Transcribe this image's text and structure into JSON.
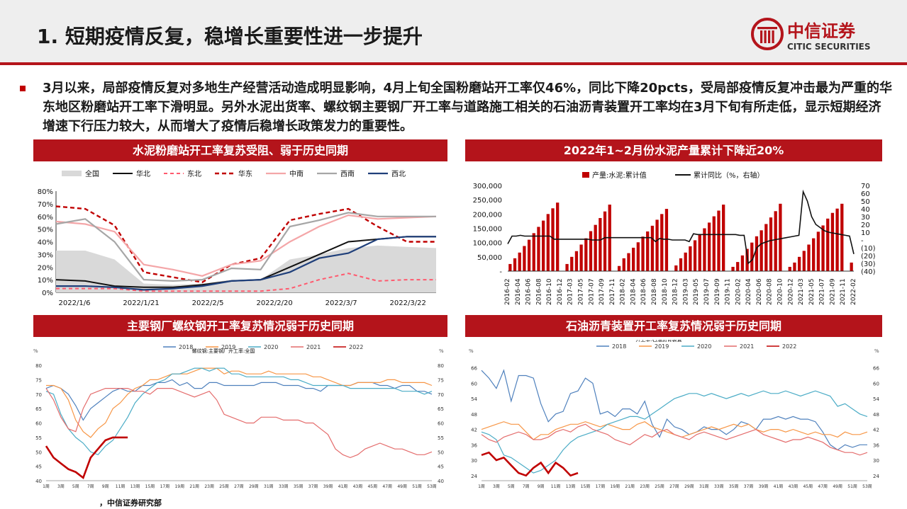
{
  "title": "1. 短期疫情反复，稳增长重要性进一步提升",
  "logo": {
    "name": "中信证券",
    "en": "CITIC SECURITIES"
  },
  "lead": "3月以来，局部疫情反复对多地生产经营活动造成明显影响，4月上旬全国粉磨站开工率仅46%，同比下降20pcts，受局部疫情反复冲击最为严重的华东地区粉磨站开工率下滑明显。另外水泥出货率、螺纹钢主要钢厂开工率与道路施工相关的石油沥青装置开工率均在3月下旬有所走低，显示短期经济增速下行压力较大，从而增大了疫情后稳增长政策发力的重要性。",
  "source": "，中信证券研究部",
  "colors": {
    "accent": "#b4141b"
  },
  "chart_data": [
    {
      "type": "line",
      "title": "水泥粉磨站开工率复苏受阻、弱于历史同期",
      "x_labels": [
        "2022/1/6",
        "2022/1/21",
        "2022/2/5",
        "2022/2/20",
        "2022/3/7",
        "2022/3/22"
      ],
      "ylim": [
        0,
        80
      ],
      "y_ticks": [
        "0%",
        "10%",
        "20%",
        "30%",
        "40%",
        "50%",
        "60%",
        "70%",
        "80%"
      ],
      "series": [
        {
          "name": "全国",
          "kind": "area",
          "color": "#d9d9d9",
          "values": [
            33,
            33,
            26,
            7,
            6,
            7,
            10,
            10,
            26,
            30,
            35,
            37,
            36,
            35
          ]
        },
        {
          "name": "华北",
          "color": "#111111",
          "values": [
            10,
            9,
            5,
            4,
            4,
            6,
            9,
            10,
            20,
            30,
            40,
            42,
            44,
            44
          ]
        },
        {
          "name": "东北",
          "color": "#ff5a6e",
          "dash": "5,4",
          "values": [
            3,
            3,
            3,
            1,
            1,
            1,
            1,
            1,
            3,
            10,
            15,
            9,
            10,
            10
          ]
        },
        {
          "name": "华东",
          "color": "#c00000",
          "dash": "6,4",
          "width": 2.4,
          "values": [
            68,
            66,
            53,
            16,
            12,
            8,
            22,
            27,
            57,
            62,
            66,
            52,
            40,
            40
          ]
        },
        {
          "name": "中南",
          "color": "#f4a6a8",
          "width": 2.2,
          "values": [
            56,
            54,
            48,
            22,
            18,
            13,
            22,
            25,
            40,
            52,
            61,
            58,
            59,
            60
          ]
        },
        {
          "name": "西南",
          "color": "#a6a6a6",
          "width": 2.2,
          "values": [
            54,
            58,
            40,
            10,
            9,
            10,
            19,
            18,
            52,
            57,
            63,
            60,
            60,
            60
          ]
        },
        {
          "name": "西北",
          "color": "#1f3f7a",
          "width": 2.2,
          "values": [
            5,
            5,
            4,
            2,
            3,
            5,
            9,
            10,
            16,
            27,
            31,
            42,
            44,
            44
          ]
        }
      ]
    },
    {
      "type": "bar",
      "title": "2022年1~2月份水泥产量累计下降近20%",
      "series": [
        {
          "name": "产量:水泥:累计值",
          "color": "#c00000"
        },
        {
          "name": "累计同比（%，右轴）",
          "color": "#111111"
        }
      ],
      "x_labels": [
        "2016-02",
        "2016-04",
        "2016-06",
        "2016-08",
        "2016-10",
        "2016-12",
        "2017-03",
        "2017-05",
        "2017-07",
        "2017-09",
        "2017-11",
        "2018-02",
        "2018-04",
        "2018-06",
        "2018-08",
        "2018-10",
        "2018-12",
        "2019-03",
        "2019-05",
        "2019-07",
        "2019-09",
        "2019-11",
        "2020-02",
        "2020-04",
        "2020-06",
        "2020-08",
        "2020-10",
        "2020-12",
        "2021-03",
        "2021-05",
        "2021-07",
        "2021-09",
        "2021-11",
        "2022-02"
      ],
      "ylim_left": [
        0,
        300000
      ],
      "y_ticks_left": [
        "-",
        "50,000",
        "100,000",
        "150,000",
        "200,000",
        "250,000",
        "300,000"
      ],
      "ylim_right": [
        -40,
        70
      ],
      "y_ticks_right": [
        "(40)",
        "(30)",
        "(20)",
        "(10)",
        "-",
        "10",
        "20",
        "30",
        "40",
        "50",
        "60",
        "70"
      ],
      "yearly_bars": [
        [
          25000,
          45000,
          65000,
          88000,
          110000,
          133000,
          155000,
          177000,
          200000,
          220000,
          240000
        ],
        [
          25000,
          50000,
          70000,
          93000,
          115000,
          140000,
          162000,
          186000,
          209000,
          233000
        ],
        [
          18000,
          45000,
          63000,
          82000,
          101000,
          121000,
          139000,
          159000,
          180000,
          200000,
          218000
        ],
        [
          20000,
          45000,
          65000,
          87000,
          108000,
          130000,
          150000,
          170000,
          192000,
          212000,
          233000
        ],
        [
          15000,
          32000,
          55000,
          78000,
          100000,
          122000,
          143000,
          165000,
          188000,
          210000,
          236000
        ],
        [
          15000,
          30000,
          50000,
          71000,
          93000,
          115000,
          138000,
          160000,
          184000,
          204000,
          219000,
          236000
        ],
        [
          30000
        ]
      ],
      "line": [
        -5,
        5,
        5,
        6,
        5,
        5,
        5,
        5,
        5,
        5,
        5,
        1,
        1,
        1,
        1,
        1,
        1,
        1,
        1,
        1,
        0,
        0,
        0,
        3,
        3,
        3,
        3,
        3,
        3,
        3,
        3,
        3,
        3,
        3,
        3,
        -2,
        2,
        1,
        1,
        0,
        0,
        0,
        0,
        -2,
        8,
        7,
        7,
        7,
        7,
        7,
        7,
        7,
        7,
        7,
        7,
        6,
        6,
        -30,
        -25,
        -10,
        -5,
        -3,
        -1,
        0,
        1,
        2,
        3,
        4,
        5,
        6,
        62,
        50,
        30,
        20,
        16,
        12,
        10,
        9,
        8,
        7,
        6,
        5,
        -18
      ]
    },
    {
      "type": "line",
      "title": "主要钢厂螺纹钢开工率复苏情况弱于历史同期",
      "subtitle": "螺纹钢:主要钢厂开工率:全国",
      "unit": "%",
      "legend": [
        "2018",
        "2019",
        "2020",
        "2021",
        "2022"
      ],
      "ylim": [
        40,
        80
      ],
      "y_ticks": [
        "40",
        "45",
        "50",
        "55",
        "60",
        "65",
        "70",
        "75",
        "80"
      ],
      "x_labels": [
        "1周",
        "3周",
        "5周",
        "7周",
        "9周",
        "11周",
        "13周",
        "15周",
        "17周",
        "19周",
        "21周",
        "23周",
        "25周",
        "27周",
        "29周",
        "31周",
        "33周",
        "35周",
        "37周",
        "39周",
        "41周",
        "43周",
        "45周",
        "47周",
        "49周",
        "51周",
        "53周"
      ],
      "series": [
        {
          "name": "2018",
          "color": "#4f81bd",
          "values": [
            72,
            73,
            72,
            70,
            66,
            61,
            65,
            67,
            69,
            71,
            72,
            71,
            71,
            73,
            73,
            74,
            74,
            75,
            73,
            74,
            72,
            72,
            74,
            74,
            73,
            73,
            73,
            73,
            73,
            74,
            74,
            74,
            73,
            73,
            73,
            72,
            72,
            71,
            73,
            73,
            73,
            73,
            74,
            74,
            74,
            73,
            73,
            72,
            73,
            73,
            71,
            71,
            70
          ]
        },
        {
          "name": "2019",
          "color": "#f79646",
          "values": [
            73,
            73,
            72,
            68,
            61,
            57,
            55,
            58,
            60,
            65,
            67,
            70,
            72,
            73,
            75,
            75,
            76,
            77,
            77,
            77,
            78,
            79,
            79,
            79,
            77,
            78,
            78,
            77,
            77,
            77,
            78,
            77,
            77,
            77,
            77,
            77,
            76,
            76,
            75,
            74,
            73,
            73,
            74,
            74,
            74,
            74,
            75,
            75,
            74,
            74,
            74,
            74,
            73
          ]
        },
        {
          "name": "2020",
          "color": "#4bacc6",
          "values": [
            71,
            70,
            63,
            58,
            55,
            53,
            50,
            49,
            52,
            54,
            58,
            62,
            67,
            70,
            72,
            74,
            75,
            77,
            77,
            78,
            79,
            79,
            78,
            79,
            79,
            77,
            77,
            76,
            76,
            76,
            76,
            76,
            76,
            75,
            75,
            74,
            73,
            73,
            73,
            73,
            73,
            72,
            72,
            72,
            72,
            72,
            72,
            72,
            71,
            71,
            71,
            70,
            71
          ]
        },
        {
          "name": "2021",
          "color": "#e46c6c",
          "values": [
            72,
            68,
            62,
            58,
            57,
            65,
            70,
            71,
            72,
            72,
            72,
            72,
            71,
            71,
            70,
            72,
            72,
            72,
            71,
            70,
            69,
            70,
            71,
            68,
            63,
            62,
            61,
            60,
            60,
            62,
            62,
            62,
            61,
            61,
            61,
            60,
            60,
            58,
            56,
            51,
            49,
            48,
            49,
            51,
            52,
            53,
            52,
            51,
            51,
            50,
            49,
            49,
            50
          ]
        },
        {
          "name": "2022",
          "color": "#c00000",
          "width": 2.6,
          "values": [
            52,
            48,
            46,
            44,
            43,
            41,
            48,
            51,
            54,
            55,
            55,
            55
          ]
        }
      ]
    },
    {
      "type": "line",
      "title": "石油沥青装置开工率复苏情况弱于历史同期",
      "subtitle": "开工率:石油沥青装置",
      "unit": "%",
      "legend": [
        "2018",
        "2019",
        "2020",
        "2021",
        "2022"
      ],
      "ylim": [
        22,
        67
      ],
      "y_ticks": [
        "24",
        "30",
        "36",
        "42",
        "48",
        "54",
        "60",
        "66"
      ],
      "x_labels": [
        "1周",
        "3周",
        "5周",
        "7周",
        "9周",
        "11周",
        "13周",
        "15周",
        "17周",
        "19周",
        "21周",
        "23周",
        "25周",
        "27周",
        "29周",
        "31周",
        "33周",
        "35周",
        "37周",
        "39周",
        "41周",
        "43周",
        "45周",
        "47周",
        "49周",
        "51周",
        "53周"
      ],
      "series": [
        {
          "name": "2018",
          "color": "#4f81bd",
          "values": [
            65,
            62,
            58,
            65,
            53,
            63,
            63,
            62,
            52,
            45,
            48,
            49,
            56,
            57,
            62,
            60,
            48,
            49,
            47,
            50,
            50,
            48,
            53,
            44,
            39,
            46,
            43,
            42,
            40,
            41,
            43,
            42,
            42,
            40,
            42,
            45,
            44,
            42,
            46,
            46,
            47,
            46,
            47,
            46,
            46,
            45,
            41,
            36,
            34,
            36,
            35,
            36,
            36
          ]
        },
        {
          "name": "2019",
          "color": "#f79646",
          "values": [
            42,
            43,
            44,
            45,
            44,
            44,
            41,
            38,
            40,
            40,
            42,
            43,
            44,
            44,
            45,
            44,
            43,
            44,
            43,
            42,
            42,
            44,
            45,
            43,
            42,
            41,
            40,
            39,
            40,
            41,
            42,
            43,
            42,
            43,
            44,
            43,
            44,
            42,
            41,
            42,
            42,
            41,
            42,
            41,
            40,
            41,
            40,
            40,
            39,
            41,
            40,
            40,
            41
          ]
        },
        {
          "name": "2020",
          "color": "#4bacc6",
          "values": [
            41,
            40,
            38,
            32,
            31,
            29,
            27,
            25,
            26,
            28,
            30,
            34,
            37,
            39,
            40,
            41,
            42,
            44,
            45,
            46,
            47,
            47,
            46,
            48,
            50,
            52,
            54,
            55,
            56,
            56,
            55,
            56,
            55,
            54,
            55,
            56,
            55,
            56,
            57,
            56,
            56,
            57,
            56,
            55,
            56,
            57,
            56,
            55,
            51,
            52,
            50,
            48,
            47
          ]
        },
        {
          "name": "2021",
          "color": "#e46c6c",
          "values": [
            40,
            38,
            37,
            39,
            40,
            41,
            40,
            38,
            38,
            39,
            41,
            42,
            41,
            43,
            44,
            42,
            41,
            40,
            38,
            37,
            36,
            38,
            40,
            39,
            41,
            42,
            40,
            39,
            38,
            40,
            41,
            40,
            39,
            38,
            39,
            40,
            41,
            42,
            40,
            39,
            38,
            37,
            38,
            38,
            39,
            38,
            37,
            35,
            34,
            33,
            33,
            32,
            33
          ]
        },
        {
          "name": "2022",
          "color": "#c00000",
          "width": 2.6,
          "values": [
            32,
            33,
            30,
            31,
            28,
            25,
            24,
            27,
            29,
            25,
            29,
            27,
            24,
            25
          ]
        }
      ]
    }
  ]
}
